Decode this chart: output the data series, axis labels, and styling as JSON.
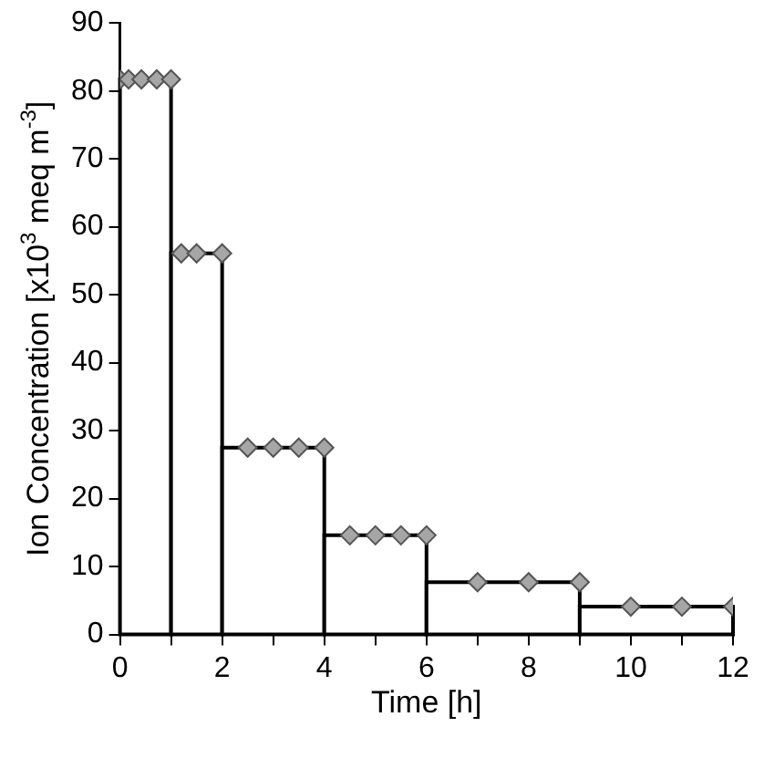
{
  "chart_data": {
    "type": "histogram",
    "xlabel": "Time [h]",
    "ylabel": "Ion Concentration [x10$^{3}$ meq m$^{-3}$]",
    "bins": [
      0,
      1,
      2,
      4,
      6,
      9,
      12
    ],
    "values": [
      81.7,
      56.1,
      27.5,
      14.6,
      7.7,
      4.1
    ],
    "color": "#ffffff",
    "series": [
      {
        "type": "scatter",
        "color": "#a6a6a6",
        "x": [
          0,
          0.17,
          0.42,
          0.72,
          1,
          1.2,
          1.5,
          2,
          2.5,
          3,
          3.5,
          4,
          4.5,
          5,
          5.5,
          6,
          7,
          8,
          9,
          10,
          11,
          12
        ],
        "values": [
          81.7,
          81.7,
          81.7,
          81.7,
          81.7,
          56.1,
          56.1,
          56.1,
          27.5,
          27.5,
          27.5,
          27.5,
          14.6,
          14.6,
          14.6,
          14.6,
          7.7,
          7.7,
          7.7,
          4.1,
          4.1,
          4.1
        ]
      }
    ],
    "marker": "diamond",
    "xlim": [
      0,
      12
    ],
    "xticks": [
      0,
      {
        "value": 1,
        "label": null
      },
      2,
      {
        "value": 3,
        "label": null
      },
      4,
      {
        "value": 5,
        "label": null
      },
      6,
      {
        "value": 7,
        "label": null
      },
      8,
      {
        "value": 9,
        "label": null
      },
      10,
      {
        "value": 11,
        "label": null
      },
      12
    ],
    "ylim": [
      0,
      90
    ],
    "yticks": [
      0,
      10,
      20,
      30,
      40,
      50,
      60,
      70,
      80,
      90
    ]
  }
}
